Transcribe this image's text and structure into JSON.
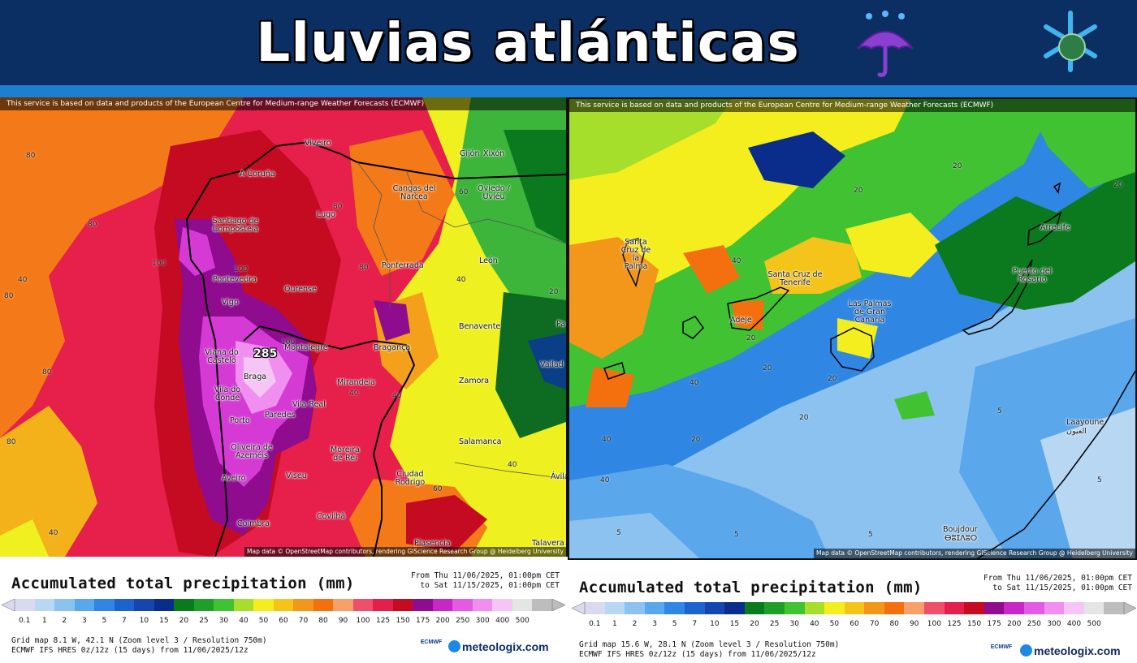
{
  "header": {
    "title": "Lluvias atlánticas",
    "umbrella_icon": "umbrella-rain-icon",
    "brand_icon": "snowflake-globe-icon"
  },
  "maps": [
    {
      "service_note": "This service is based on data and products of the European Centre for Medium-range Weather Forecasts (ECMWF)",
      "attribution": "Map data © OpenStreetMap contributors, rendering GIScience Research Group @ Heidelberg University",
      "max_value": "285",
      "cities": [
        "Viveiro",
        "A Coruña",
        "Xixón",
        "Gijón",
        "Cangas del Narcea",
        "Oviedo / Uviéu",
        "Santiago de Compostela",
        "Lugo",
        "Ponferrada",
        "León",
        "Pontevedra",
        "Ourense",
        "Vigo",
        "Benavente",
        "Viana do Castelo",
        "Montalegre",
        "Bragança",
        "Braga",
        "Mirandela",
        "Zamora",
        "Vila do Conde",
        "Vila Real",
        "Porto",
        "Paredes",
        "Salamanca",
        "Oliveira de Azeméis",
        "Moreira de Rei",
        "Aveiro",
        "Viseu",
        "Ciudad Rodrigo",
        "Coimbra",
        "Covilhã",
        "Plasencia",
        "Talavera",
        "Vallad",
        "Ávila",
        "Pa"
      ],
      "contour_labels": [
        "80",
        "80",
        "100",
        "100",
        "80",
        "60",
        "80",
        "80",
        "80",
        "40",
        "20",
        "40",
        "40",
        "100",
        "40",
        "40",
        "60",
        "80",
        "40"
      ],
      "legend": {
        "title": "Accumulated total precipitation (mm)",
        "range_from": "From Thu 11/06/2025, 01:00pm CET",
        "range_to": "to Sat 11/15/2025, 01:00pm CET",
        "grid": "Grid map 8.1 W, 42.1 N (Zoom level 3 / Resolution 750m)",
        "model": "ECMWF IFS HRES 0z/12z (15 days) from 11/06/2025/12z",
        "brand": "meteologix.com",
        "ecmwf_label": "ECMWF"
      }
    },
    {
      "service_note": "This service is based on data and products of the European Centre for Medium-range Weather Forecasts (ECMWF)",
      "attribution": "Map data © OpenStreetMap contributors, rendering GIScience Research Group @ Heidelberg University",
      "cities": [
        "Santa Cruz de la Palma",
        "Santa Cruz de Tenerife",
        "Adeje",
        "Las Palmas de Gran Canaria",
        "Arrecife",
        "Puerto del Rosario",
        "Laayoune",
        "العيون",
        "Boujdour",
        "ⴱⵓⵊⴷⵓⵔ"
      ],
      "contour_labels": [
        "20",
        "20",
        "40",
        "40",
        "40",
        "20",
        "20",
        "20",
        "20",
        "40",
        "20",
        "20",
        "5",
        "5",
        "5",
        "5",
        "5"
      ],
      "legend": {
        "title": "Accumulated total precipitation (mm)",
        "range_from": "From Thu 11/06/2025, 01:00pm CET",
        "range_to": "to Sat 11/15/2025, 01:00pm CET",
        "grid": "Grid map 15.6 W, 28.1 N (Zoom level 3 / Resolution 750m)",
        "model": "ECMWF IFS HRES 0z/12z (15 days) from 11/06/2025/12z",
        "brand": "meteologix.com",
        "ecmwf_label": "ECMWF"
      }
    }
  ],
  "scale": {
    "ticks": [
      "0.1",
      "1",
      "2",
      "3",
      "5",
      "7",
      "10",
      "15",
      "20",
      "25",
      "30",
      "40",
      "50",
      "60",
      "70",
      "80",
      "90",
      "100",
      "125",
      "150",
      "175",
      "200",
      "250",
      "300",
      "400",
      "500"
    ],
    "colors": [
      "#d9d9ef",
      "#b7d7f3",
      "#8cc2f0",
      "#5aa7ec",
      "#2f86e3",
      "#1c63cf",
      "#1446ae",
      "#0a2d8c",
      "#0b7a1e",
      "#1f9e2a",
      "#41c232",
      "#a6de2c",
      "#f4ee1f",
      "#f4c41a",
      "#f29719",
      "#f4700f",
      "#f7a06a",
      "#ef4f6a",
      "#e41f4b",
      "#c50b22",
      "#8f0c8e",
      "#c627c6",
      "#e35be3",
      "#f08ff0",
      "#f5c6f5",
      "#e5e5e5",
      "#bdbdbd"
    ]
  }
}
